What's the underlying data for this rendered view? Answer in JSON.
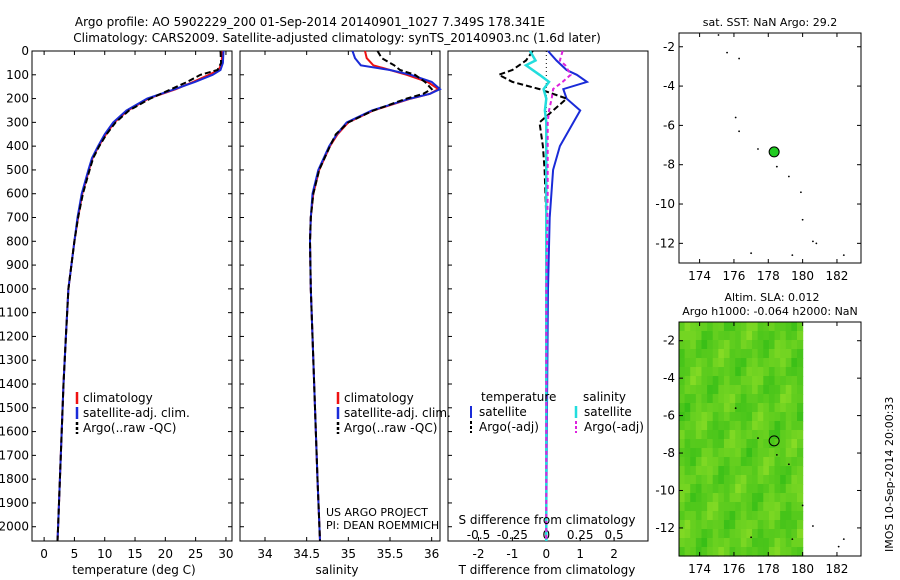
{
  "header": {
    "line1": "Argo profile: AO 5902229_200 01-Sep-2014 20140901_1027 7.349S 178.341E",
    "line2": "Climatology: CARS2009. Satellite-adjusted climatology: synTS_20140903.nc (1.6d later)"
  },
  "side_stamp": "IMOS 10-Sep-2014 20:00:33",
  "colors": {
    "climatology": "#ee1111",
    "satellite": "#1a2bd8",
    "argo": "#000000",
    "temp_satellite": "#1a2bd8",
    "sal_satellite": "#22dddd",
    "sal_argo": "#dd22dd",
    "float_marker": "#22cc22",
    "sla_field": "#44cc22"
  },
  "chart_data": [
    {
      "type": "line",
      "name": "temperature-profile",
      "xlabel": "temperature (deg C)",
      "ylabel": "",
      "xlim": [
        -2,
        31
      ],
      "ylim": [
        2060,
        0
      ],
      "x_ticks": [
        0,
        5,
        10,
        15,
        20,
        25,
        30
      ],
      "y_ticks": [
        0,
        100,
        200,
        300,
        400,
        500,
        600,
        700,
        800,
        900,
        1000,
        1100,
        1200,
        1300,
        1400,
        1500,
        1600,
        1700,
        1800,
        1900,
        2000
      ],
      "legend": [
        "climatology",
        "satellite-adj. clim.",
        "Argo(..raw -QC)"
      ],
      "depth": [
        0,
        50,
        80,
        100,
        130,
        160,
        200,
        250,
        300,
        350,
        400,
        450,
        500,
        600,
        700,
        800,
        900,
        1000,
        1200,
        1400,
        1600,
        1800,
        2000,
        2060
      ],
      "series": [
        {
          "name": "climatology",
          "values": [
            29.4,
            29.3,
            28.8,
            27.2,
            24.6,
            21.8,
            17.2,
            13.8,
            11.6,
            10.2,
            9.0,
            8.0,
            7.4,
            6.3,
            5.6,
            5.0,
            4.5,
            4.0,
            3.6,
            3.2,
            2.9,
            2.6,
            2.3,
            2.2
          ]
        },
        {
          "name": "satellite-adj. clim.",
          "values": [
            29.6,
            29.5,
            29.1,
            27.8,
            24.9,
            21.6,
            17.0,
            13.6,
            11.4,
            10.0,
            8.9,
            7.9,
            7.3,
            6.2,
            5.5,
            5.0,
            4.5,
            4.0,
            3.6,
            3.2,
            2.9,
            2.6,
            2.3,
            2.2
          ]
        },
        {
          "name": "Argo(..raw -QC)",
          "values": [
            29.1,
            29.2,
            28.6,
            25.8,
            23.6,
            21.0,
            17.5,
            14.0,
            11.8,
            10.3,
            9.1,
            8.1,
            7.5,
            6.4,
            5.6,
            5.0,
            4.5,
            4.0,
            3.6,
            3.2,
            2.9,
            2.6,
            2.3,
            2.2
          ]
        }
      ]
    },
    {
      "type": "line",
      "name": "salinity-profile",
      "xlabel": "salinity",
      "xlim": [
        33.7,
        36.1
      ],
      "ylim": [
        2060,
        0
      ],
      "x_ticks": [
        34,
        34.5,
        35,
        35.5,
        36
      ],
      "legend": [
        "climatology",
        "satellite-adj. clim.",
        "Argo(..raw -QC)"
      ],
      "annotation": [
        "US ARGO PROJECT",
        "PI: DEAN ROEMMICH"
      ],
      "depth": [
        0,
        30,
        60,
        80,
        100,
        130,
        160,
        180,
        200,
        250,
        300,
        350,
        400,
        500,
        600,
        700,
        800,
        1000,
        1200,
        1500,
        1800,
        2060
      ],
      "series": [
        {
          "name": "climatology",
          "values": [
            35.2,
            35.22,
            35.3,
            35.5,
            35.7,
            35.95,
            36.08,
            35.98,
            35.75,
            35.3,
            35.0,
            34.87,
            34.78,
            34.65,
            34.58,
            34.55,
            34.54,
            34.55,
            34.57,
            34.6,
            34.63,
            34.66
          ]
        },
        {
          "name": "satellite-adj. clim.",
          "values": [
            35.05,
            35.08,
            35.15,
            35.5,
            35.75,
            36.0,
            36.1,
            35.98,
            35.74,
            35.28,
            34.98,
            34.86,
            34.77,
            34.64,
            34.57,
            34.55,
            34.54,
            34.55,
            34.57,
            34.6,
            34.63,
            34.66
          ]
        },
        {
          "name": "Argo(..raw -QC)",
          "values": [
            35.35,
            35.4,
            35.55,
            35.62,
            35.8,
            35.92,
            36.0,
            35.9,
            35.7,
            35.3,
            35.0,
            34.85,
            34.78,
            34.65,
            34.58,
            34.55,
            34.54,
            34.55,
            34.57,
            34.6,
            34.63,
            34.66
          ]
        }
      ]
    },
    {
      "type": "line",
      "name": "difference-profile",
      "xlabel": "T difference from climatology",
      "x2label": "S difference from climatology",
      "xlim": [
        -2.9,
        3.0
      ],
      "x2lim": [
        -0.725,
        0.75
      ],
      "ylim": [
        2060,
        0
      ],
      "x_ticks": [
        -2,
        -1,
        0,
        1,
        2
      ],
      "x2_ticks": [
        -0.5,
        -0.25,
        0,
        0.25,
        0.5
      ],
      "x2_tick_labels": [
        "-0.5",
        "-0.25",
        "0",
        "0.25",
        "0.5"
      ],
      "legend_titles": [
        "temperature",
        "salinity"
      ],
      "legend": [
        "satellite",
        "Argo(-adj)",
        "satellite",
        "Argo(-adj)"
      ],
      "t_depth": [
        0,
        40,
        80,
        100,
        130,
        160,
        200,
        250,
        300,
        400,
        500,
        700,
        1000,
        1500,
        2060
      ],
      "s_depth": [
        0,
        40,
        60,
        100,
        130,
        160,
        200,
        250,
        300,
        400,
        600,
        1000,
        1500,
        2060
      ],
      "series": [
        {
          "name": "temperature satellite",
          "kind": "T",
          "values": [
            0.05,
            0.3,
            0.6,
            0.9,
            1.2,
            0.5,
            0.6,
            1.0,
            0.8,
            0.4,
            0.2,
            0.1,
            0.05,
            0.02,
            0.0
          ]
        },
        {
          "name": "temperature Argo(-adj)",
          "kind": "T",
          "values": [
            -0.4,
            -0.6,
            -1.0,
            -1.4,
            -1.0,
            -0.2,
            0.6,
            0.2,
            -0.2,
            -0.1,
            -0.05,
            0.0,
            0.0,
            0.0,
            0.0
          ]
        },
        {
          "name": "salinity satellite",
          "kind": "S",
          "values": [
            -0.12,
            -0.08,
            -0.15,
            -0.05,
            0.02,
            -0.02,
            0.0,
            -0.01,
            0.0,
            0.0,
            0.0,
            0.0,
            0.0,
            0.0
          ]
        },
        {
          "name": "salinity Argo(-adj)",
          "kind": "S",
          "values": [
            0.12,
            0.1,
            0.14,
            0.18,
            0.12,
            0.05,
            0.04,
            0.02,
            0.01,
            0.01,
            0.01,
            0.0,
            0.0,
            0.0
          ]
        }
      ]
    },
    {
      "type": "scatter",
      "name": "sst-map",
      "title": "sat. SST: NaN Argo: 29.2",
      "xlim": [
        172.8,
        183.4
      ],
      "ylim": [
        -13.0,
        -1.3
      ],
      "x_ticks": [
        174,
        176,
        178,
        180,
        182
      ],
      "y_ticks": [
        -2,
        -4,
        -6,
        -8,
        -10,
        -12
      ],
      "float_position": {
        "lon": 178.341,
        "lat": -7.349
      },
      "islands": [
        [
          175.1,
          -1.4
        ],
        [
          175.6,
          -2.3
        ],
        [
          176.3,
          -2.6
        ],
        [
          176.1,
          -5.6
        ],
        [
          176.3,
          -6.3
        ],
        [
          177.4,
          -7.2
        ],
        [
          178.5,
          -8.1
        ],
        [
          179.2,
          -8.6
        ],
        [
          179.9,
          -9.4
        ],
        [
          180.0,
          -10.8
        ],
        [
          180.6,
          -11.9
        ],
        [
          182.4,
          -12.6
        ],
        [
          179.4,
          -12.6
        ],
        [
          177.0,
          -12.5
        ],
        [
          180.8,
          -12.0
        ]
      ]
    },
    {
      "type": "heatmap",
      "name": "sla-map",
      "title": "Altim. SLA: 0.012",
      "subtitle": "Argo h1000: -0.064 h2000: NaN",
      "xlim": [
        172.8,
        183.4
      ],
      "ylim": [
        -13.5,
        -1.0
      ],
      "x_ticks": [
        174,
        176,
        178,
        180,
        182
      ],
      "y_ticks": [
        -2,
        -4,
        -6,
        -8,
        -10,
        -12
      ],
      "field_extent": {
        "lon": [
          172.8,
          180.0
        ],
        "lat": [
          -13.5,
          -1.0
        ]
      },
      "float_position": {
        "lon": 178.341,
        "lat": -7.349
      },
      "islands": [
        [
          176.1,
          -5.6
        ],
        [
          177.4,
          -7.2
        ],
        [
          178.5,
          -8.1
        ],
        [
          179.2,
          -8.6
        ],
        [
          180.0,
          -10.8
        ],
        [
          182.4,
          -12.6
        ],
        [
          179.4,
          -12.6
        ],
        [
          177.0,
          -12.5
        ],
        [
          182.1,
          -13.0
        ],
        [
          180.6,
          -11.9
        ]
      ]
    }
  ]
}
